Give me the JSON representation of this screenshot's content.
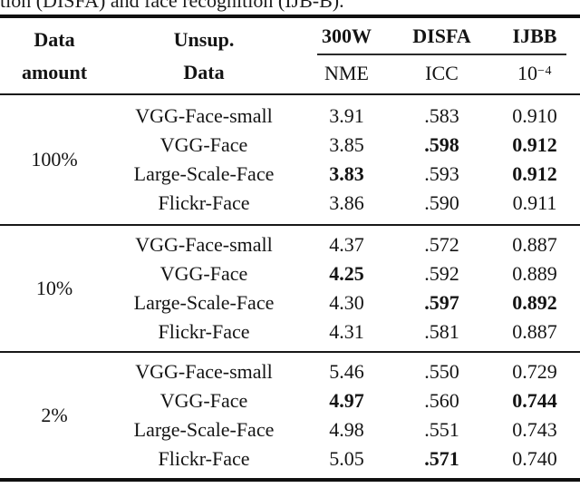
{
  "caption_fragment": "tion (DISFA) and face recognition (IJB-B).",
  "table": {
    "headers": {
      "col1": [
        "Data",
        "amount"
      ],
      "col2": [
        "Unsup.",
        "Data"
      ],
      "datasets": [
        "300W",
        "DISFA",
        "IJBB"
      ],
      "metrics": [
        "NME",
        "ICC"
      ],
      "ijbb_metric_base": "10",
      "ijbb_metric_exp": "−4"
    },
    "groups": [
      {
        "amount": "100%",
        "rows": [
          {
            "unsup": "VGG-Face-small",
            "nme": "3.91",
            "icc": ".583",
            "ijbb": "0.910",
            "nme_bold": false,
            "icc_bold": false,
            "ijbb_bold": false
          },
          {
            "unsup": "VGG-Face",
            "nme": "3.85",
            "icc": ".598",
            "ijbb": "0.912",
            "nme_bold": false,
            "icc_bold": true,
            "ijbb_bold": true
          },
          {
            "unsup": "Large-Scale-Face",
            "nme": "3.83",
            "icc": ".593",
            "ijbb": "0.912",
            "nme_bold": true,
            "icc_bold": false,
            "ijbb_bold": true
          },
          {
            "unsup": "Flickr-Face",
            "nme": "3.86",
            "icc": ".590",
            "ijbb": "0.911",
            "nme_bold": false,
            "icc_bold": false,
            "ijbb_bold": false
          }
        ]
      },
      {
        "amount": "10%",
        "rows": [
          {
            "unsup": "VGG-Face-small",
            "nme": "4.37",
            "icc": ".572",
            "ijbb": "0.887",
            "nme_bold": false,
            "icc_bold": false,
            "ijbb_bold": false
          },
          {
            "unsup": "VGG-Face",
            "nme": "4.25",
            "icc": ".592",
            "ijbb": "0.889",
            "nme_bold": true,
            "icc_bold": false,
            "ijbb_bold": false
          },
          {
            "unsup": "Large-Scale-Face",
            "nme": "4.30",
            "icc": ".597",
            "ijbb": "0.892",
            "nme_bold": false,
            "icc_bold": true,
            "ijbb_bold": true
          },
          {
            "unsup": "Flickr-Face",
            "nme": "4.31",
            "icc": ".581",
            "ijbb": "0.887",
            "nme_bold": false,
            "icc_bold": false,
            "ijbb_bold": false
          }
        ]
      },
      {
        "amount": "2%",
        "rows": [
          {
            "unsup": "VGG-Face-small",
            "nme": "5.46",
            "icc": ".550",
            "ijbb": "0.729",
            "nme_bold": false,
            "icc_bold": false,
            "ijbb_bold": false
          },
          {
            "unsup": "VGG-Face",
            "nme": "4.97",
            "icc": ".560",
            "ijbb": "0.744",
            "nme_bold": true,
            "icc_bold": false,
            "ijbb_bold": true
          },
          {
            "unsup": "Large-Scale-Face",
            "nme": "4.98",
            "icc": ".551",
            "ijbb": "0.743",
            "nme_bold": false,
            "icc_bold": false,
            "ijbb_bold": false
          },
          {
            "unsup": "Flickr-Face",
            "nme": "5.05",
            "icc": ".571",
            "ijbb": "0.740",
            "nme_bold": false,
            "icc_bold": true,
            "ijbb_bold": false
          }
        ]
      }
    ]
  }
}
